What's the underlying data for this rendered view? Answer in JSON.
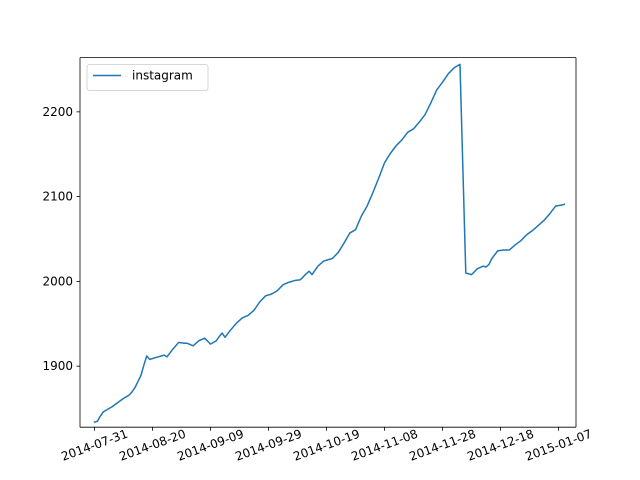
{
  "chart_data": {
    "type": "line",
    "title": "",
    "xlabel": "",
    "ylabel": "",
    "x_ticks": [
      "2014-07-31",
      "2014-08-20",
      "2014-09-09",
      "2014-09-29",
      "2014-10-19",
      "2014-11-08",
      "2014-11-28",
      "2014-12-18",
      "2015-01-07"
    ],
    "y_ticks": [
      1900,
      2000,
      2100,
      2200
    ],
    "xlim": [
      "2014-07-26",
      "2015-01-13"
    ],
    "ylim": [
      1828,
      2264
    ],
    "grid": false,
    "legend": {
      "position": "upper-left",
      "entries": [
        "instagram"
      ]
    },
    "colors": {
      "instagram": "#1f77b4"
    },
    "series": [
      {
        "name": "instagram",
        "x": [
          "2014-07-31",
          "2014-08-01",
          "2014-08-02",
          "2014-08-03",
          "2014-08-04",
          "2014-08-06",
          "2014-08-08",
          "2014-08-10",
          "2014-08-11",
          "2014-08-12",
          "2014-08-13",
          "2014-08-14",
          "2014-08-15",
          "2014-08-16",
          "2014-08-17",
          "2014-08-18",
          "2014-08-19",
          "2014-08-21",
          "2014-08-23",
          "2014-08-24",
          "2014-08-25",
          "2014-08-27",
          "2014-08-29",
          "2014-08-31",
          "2014-09-01",
          "2014-09-03",
          "2014-09-05",
          "2014-09-07",
          "2014-09-09",
          "2014-09-11",
          "2014-09-12",
          "2014-09-13",
          "2014-09-14",
          "2014-09-16",
          "2014-09-18",
          "2014-09-20",
          "2014-09-22",
          "2014-09-24",
          "2014-09-26",
          "2014-09-28",
          "2014-09-30",
          "2014-10-02",
          "2014-10-04",
          "2014-10-06",
          "2014-10-08",
          "2014-10-10",
          "2014-10-12",
          "2014-10-13",
          "2014-10-14",
          "2014-10-16",
          "2014-10-18",
          "2014-10-20",
          "2014-10-21",
          "2014-10-23",
          "2014-10-25",
          "2014-10-27",
          "2014-10-29",
          "2014-10-31",
          "2014-11-02",
          "2014-11-04",
          "2014-11-06",
          "2014-11-08",
          "2014-11-10",
          "2014-11-12",
          "2014-11-14",
          "2014-11-16",
          "2014-11-18",
          "2014-11-20",
          "2014-11-22",
          "2014-11-24",
          "2014-11-26",
          "2014-11-28",
          "2014-11-30",
          "2014-12-02",
          "2014-12-04",
          "2014-12-06",
          "2014-12-08",
          "2014-12-10",
          "2014-12-12",
          "2014-12-13",
          "2014-12-14",
          "2014-12-15",
          "2014-12-17",
          "2014-12-19",
          "2014-12-21",
          "2014-12-23",
          "2014-12-25",
          "2014-12-27",
          "2014-12-29",
          "2014-12-31",
          "2015-01-02",
          "2015-01-04",
          "2015-01-06",
          "2015-01-08",
          "2015-01-09"
        ],
        "values": [
          1834,
          1835,
          1841,
          1846,
          1848,
          1852,
          1857,
          1862,
          1864,
          1866,
          1870,
          1875,
          1882,
          1889,
          1901,
          1912,
          1908,
          1910,
          1912,
          1913,
          1911,
          1920,
          1928,
          1927,
          1927,
          1924,
          1930,
          1933,
          1926,
          1930,
          1935,
          1939,
          1934,
          1943,
          1951,
          1957,
          1960,
          1966,
          1976,
          1983,
          1985,
          1989,
          1996,
          1999,
          2001,
          2002,
          2009,
          2012,
          2008,
          2018,
          2024,
          2026,
          2027,
          2034,
          2045,
          2057,
          2061,
          2077,
          2089,
          2105,
          2122,
          2140,
          2151,
          2160,
          2167,
          2176,
          2180,
          2188,
          2197,
          2211,
          2226,
          2235,
          2245,
          2252,
          2256,
          2010,
          2008,
          2015,
          2018,
          2017,
          2020,
          2027,
          2036,
          2037,
          2037,
          2043,
          2048,
          2055,
          2060,
          2066,
          2072,
          2080,
          2089,
          2090,
          2091
        ]
      }
    ]
  }
}
